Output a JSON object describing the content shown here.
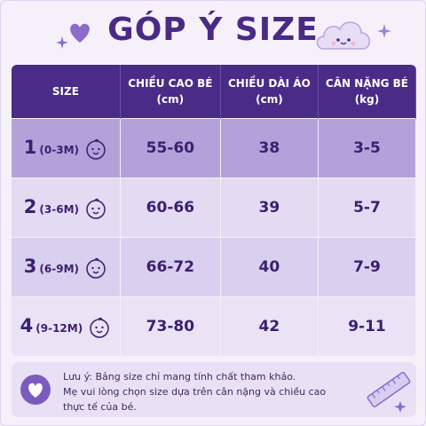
{
  "header": {
    "title": "GÓP Ý SIZE"
  },
  "table": {
    "columns": [
      {
        "text": "SIZE"
      },
      {
        "text": "CHIỀU CAO BÉ",
        "unit": "(cm)"
      },
      {
        "text": "CHIỀU DÀI ÁO",
        "unit": "(cm)"
      },
      {
        "text": "CÂN NẶNG BÉ",
        "unit": "(kg)"
      }
    ],
    "rows": [
      {
        "size": 1,
        "age": "(0-3M)",
        "height": "55-60",
        "length": 38,
        "weight": "3-5"
      },
      {
        "size": 2,
        "age": "(3-6M)",
        "height": "60-66",
        "length": 39,
        "weight": "5-7"
      },
      {
        "size": 3,
        "age": "(6-9M)",
        "height": "66-72",
        "length": 40,
        "weight": "7-9"
      },
      {
        "size": 4,
        "age": "(9-12M)",
        "height": "73-80",
        "length": 42,
        "weight": "9-11"
      }
    ]
  },
  "note": {
    "lines": [
      "Lưu ý: Bảng size chỉ mang tính chất tham khảo.",
      "Mẹ vui lòng chọn size dựa trên cân nặng và chiều cao",
      "thực tế của bé."
    ]
  }
}
